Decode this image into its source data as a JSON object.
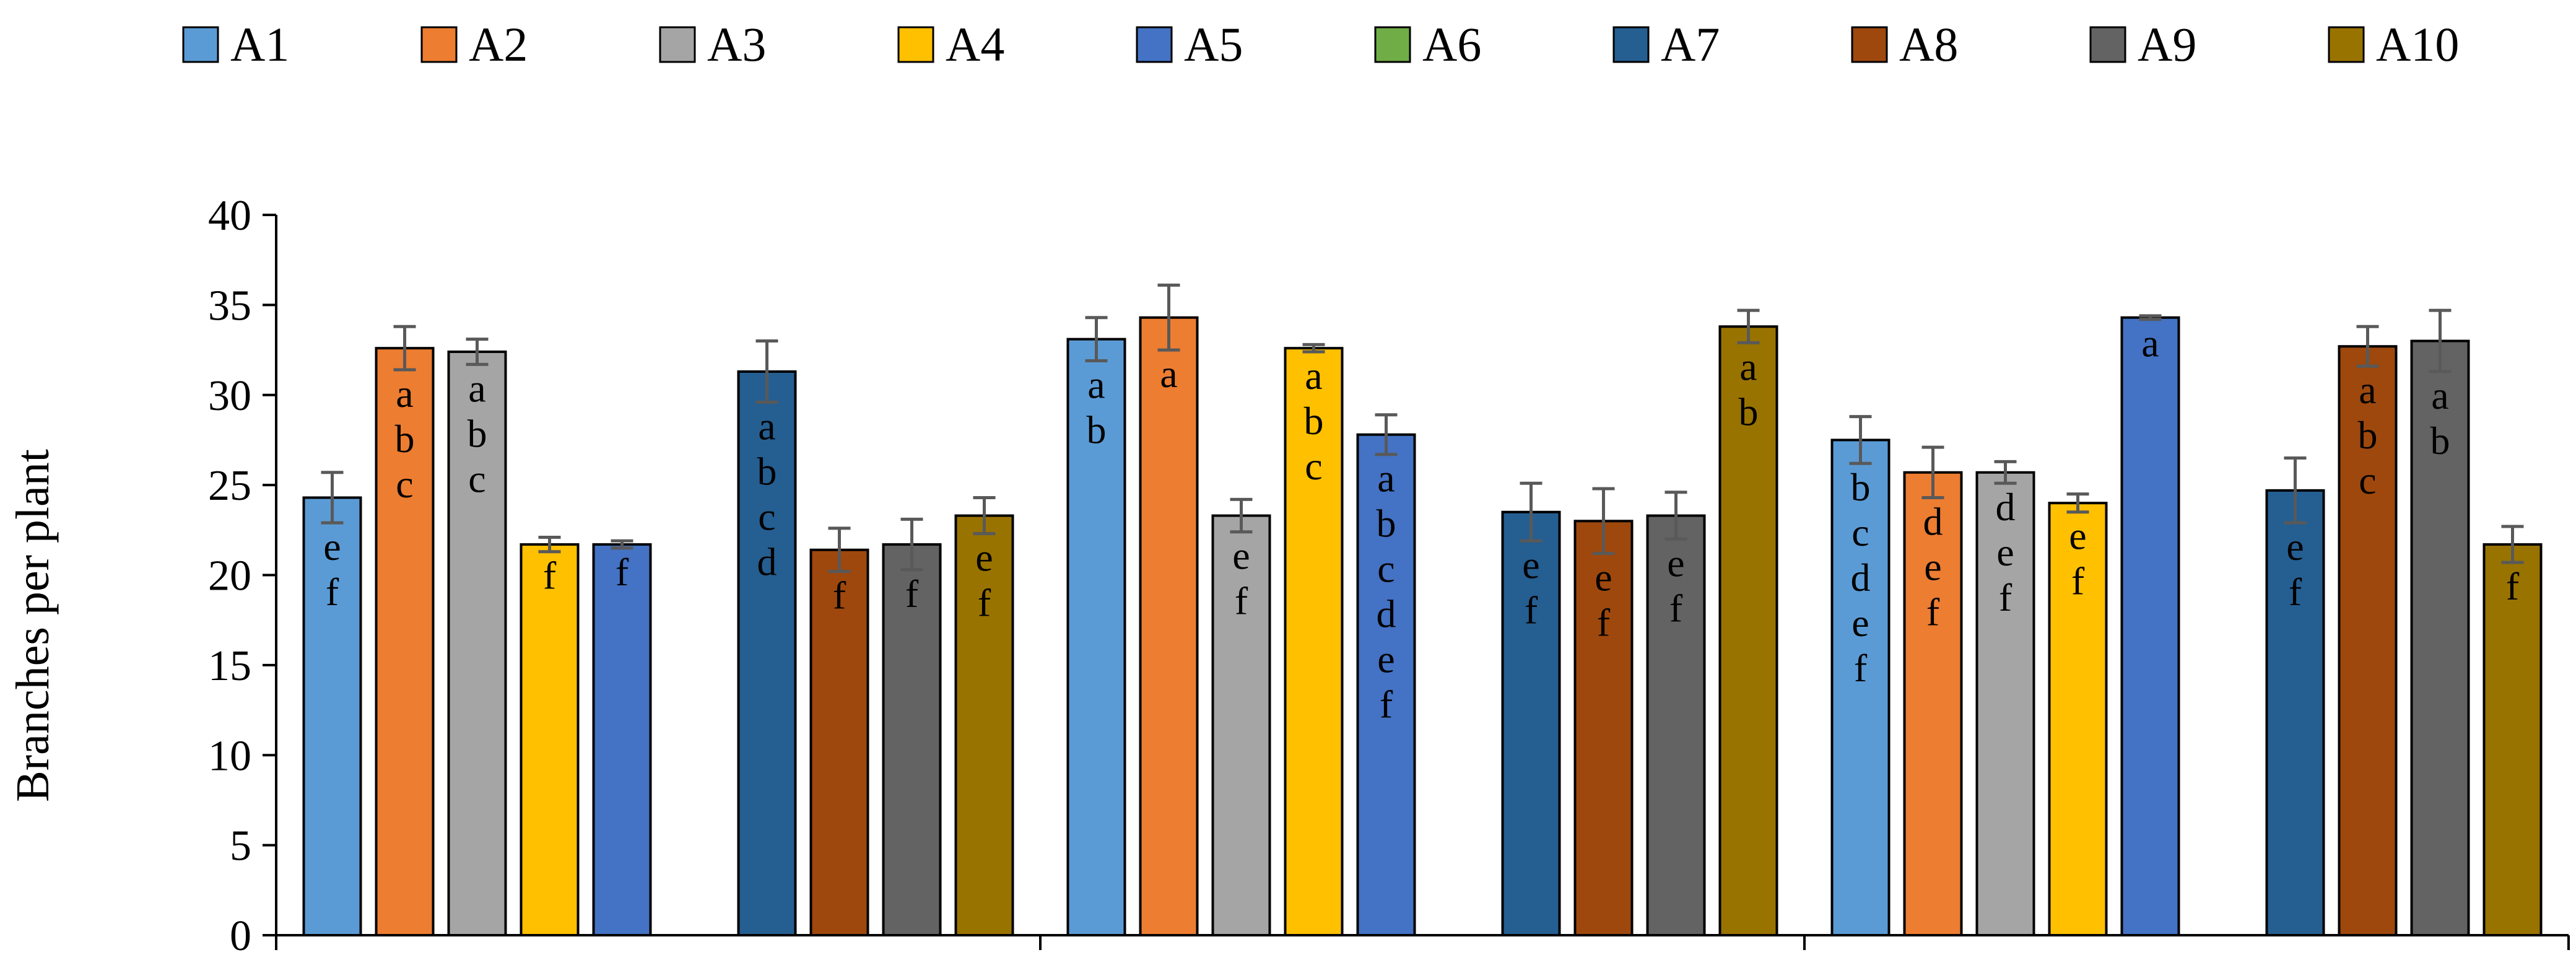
{
  "chart_data": {
    "type": "bar",
    "title": "",
    "xlabel": "",
    "ylabel": "Branches per plant",
    "ylim": [
      0,
      40
    ],
    "yticks": [
      0,
      5,
      10,
      15,
      20,
      25,
      30,
      35,
      40
    ],
    "groups": [
      "",
      "",
      ""
    ],
    "legend_position": "top",
    "series": [
      {
        "name": "A1",
        "color": "#5B9BD5",
        "values": [
          24.3,
          33.1,
          27.5
        ],
        "errors": [
          1.4,
          1.2,
          1.3
        ],
        "letters": [
          "e f",
          "a b",
          "b c d e f"
        ]
      },
      {
        "name": "A2",
        "color": "#ED7D31",
        "values": [
          32.6,
          34.3,
          25.7
        ],
        "errors": [
          1.2,
          1.8,
          1.4
        ],
        "letters": [
          "a b c",
          "a",
          "d e f"
        ]
      },
      {
        "name": "A3",
        "color": "#A5A5A5",
        "values": [
          32.4,
          23.3,
          25.7
        ],
        "errors": [
          0.7,
          0.9,
          0.6
        ],
        "letters": [
          "a b c",
          "e f",
          "d e f"
        ]
      },
      {
        "name": "A4",
        "color": "#FFC000",
        "values": [
          21.7,
          32.6,
          24.0
        ],
        "errors": [
          0.4,
          0.2,
          0.5
        ],
        "letters": [
          "f",
          "a b c",
          "e f"
        ]
      },
      {
        "name": "A5",
        "color": "#4472C4",
        "values": [
          21.7,
          27.8,
          34.3
        ],
        "errors": [
          0.2,
          1.1,
          0.1
        ],
        "letters": [
          "f",
          "a b c d e f",
          "a"
        ]
      },
      {
        "name": "A6",
        "color": "#70AD47",
        "values": [
          null,
          null,
          null
        ],
        "errors": [
          null,
          null,
          null
        ],
        "letters": [
          "",
          "",
          ""
        ]
      },
      {
        "name": "A7",
        "color": "#255E91",
        "values": [
          31.3,
          23.5,
          24.7
        ],
        "errors": [
          1.7,
          1.6,
          1.8
        ],
        "letters": [
          "a b c d",
          "e f",
          "e f"
        ]
      },
      {
        "name": "A8",
        "color": "#9E480E",
        "values": [
          21.4,
          23.0,
          32.7
        ],
        "errors": [
          1.2,
          1.8,
          1.1
        ],
        "letters": [
          "f",
          "e f",
          "a b c"
        ]
      },
      {
        "name": "A9",
        "color": "#636363",
        "values": [
          21.7,
          23.3,
          33.0
        ],
        "errors": [
          1.4,
          1.3,
          1.7
        ],
        "letters": [
          "f",
          "e f",
          "a b"
        ]
      },
      {
        "name": "A10",
        "color": "#997300",
        "values": [
          23.3,
          33.8,
          21.7
        ],
        "errors": [
          1.0,
          0.9,
          1.0
        ],
        "letters": [
          "e f",
          "a b",
          "f"
        ]
      }
    ]
  }
}
